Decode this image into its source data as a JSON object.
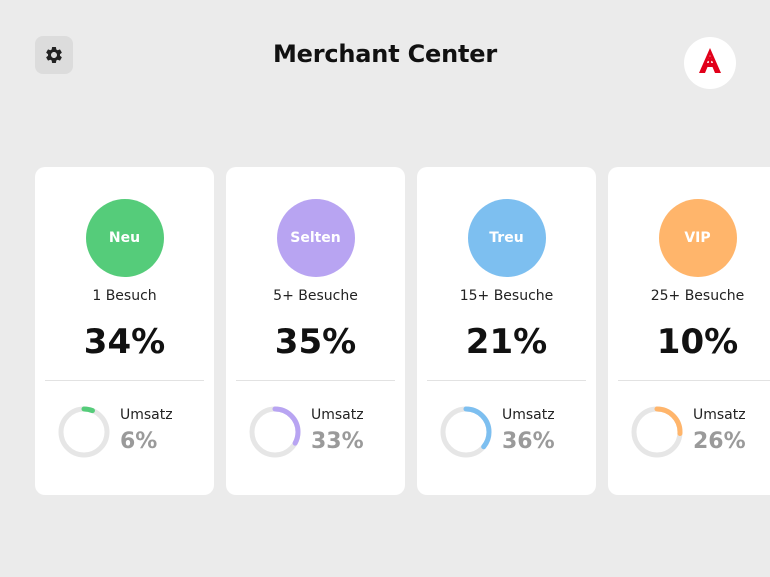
{
  "header": {
    "title": "Merchant Center",
    "settings_icon": "gear-icon",
    "logo_icon": "apotheke-a-logo-icon"
  },
  "colors": {
    "background": "#ebebeb",
    "card": "#ffffff",
    "ring_track": "#e6e6e6",
    "logo_red": "#e2001a"
  },
  "segments": [
    {
      "label": "Neu",
      "color": "#55cc7a",
      "visits": "1 Besuch",
      "share": "34%",
      "revenue_label": "Umsatz",
      "revenue": "6%",
      "revenue_fraction": 0.06
    },
    {
      "label": "Selten",
      "color": "#b8a4f2",
      "visits": "5+ Besuche",
      "share": "35%",
      "revenue_label": "Umsatz",
      "revenue": "33%",
      "revenue_fraction": 0.33
    },
    {
      "label": "Treu",
      "color": "#7dbff0",
      "visits": "15+ Besuche",
      "share": "21%",
      "revenue_label": "Umsatz",
      "revenue": "36%",
      "revenue_fraction": 0.36
    },
    {
      "label": "VIP",
      "color": "#ffb56b",
      "visits": "25+ Besuche",
      "share": "10%",
      "revenue_label": "Umsatz",
      "revenue": "26%",
      "revenue_fraction": 0.26
    }
  ]
}
